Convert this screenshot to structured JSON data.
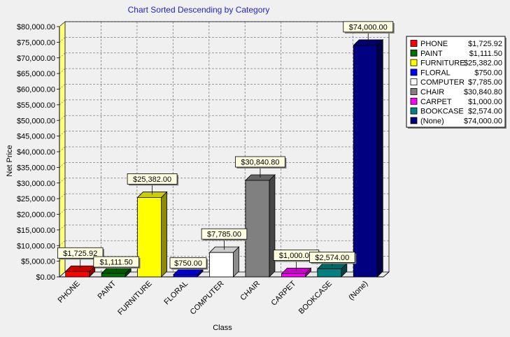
{
  "chart_data": {
    "type": "bar",
    "title": "Chart Sorted Descending by Category",
    "xlabel": "Class",
    "ylabel": "Net Price",
    "ylim": [
      0,
      80000
    ],
    "ytick_step": 5000,
    "grid": true,
    "legend_position": "top-right",
    "categories": [
      "PHONE",
      "PAINT",
      "FURNITURE",
      "FLORAL",
      "COMPUTER",
      "CHAIR",
      "CARPET",
      "BOOKCASE",
      "(None)"
    ],
    "values": [
      1725.92,
      1111.5,
      25382.0,
      750.0,
      7785.0,
      30840.8,
      1000.0,
      2574.0,
      74000.0
    ],
    "value_labels": [
      "$1,725.92",
      "$1,111.50",
      "$25,382.00",
      "$750.00",
      "$7,785.00",
      "$30,840.80",
      "$1,000.00",
      "$2,574.00",
      "$74,000.00"
    ],
    "colors": [
      "#ff0000",
      "#007000",
      "#ffff00",
      "#0000ff",
      "#ffffff",
      "#808080",
      "#ff00ff",
      "#008080",
      "#000080"
    ],
    "y_tick_labels": [
      "$0.00",
      "$5,000.00",
      "$10,000.00",
      "$15,000.00",
      "$20,000.00",
      "$25,000.00",
      "$30,000.00",
      "$35,000.00",
      "$40,000.00",
      "$45,000.00",
      "$50,000.00",
      "$55,000.00",
      "$60,000.00",
      "$65,000.00",
      "$70,000.00",
      "$75,000.00",
      "$80,000.00"
    ]
  }
}
